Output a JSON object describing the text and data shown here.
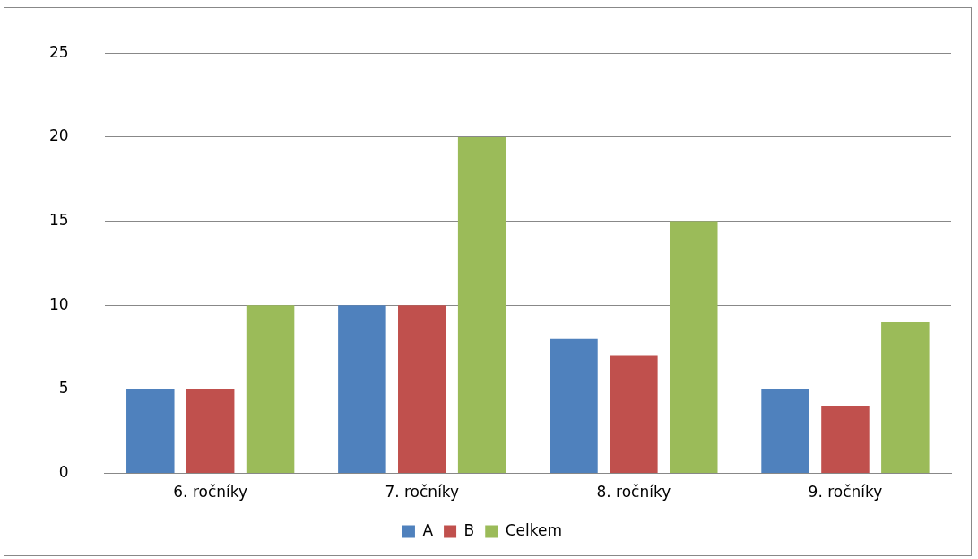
{
  "chart_data": {
    "type": "bar",
    "categories": [
      "6. ročníky",
      "7. ročníky",
      "8. ročníky",
      "9. ročníky"
    ],
    "series": [
      {
        "name": "A",
        "color": "#4f81bd",
        "values": [
          5,
          10,
          8,
          5
        ]
      },
      {
        "name": "B",
        "color": "#c0504d",
        "values": [
          5,
          10,
          7,
          4
        ]
      },
      {
        "name": "Celkem",
        "color": "#9bbb59",
        "values": [
          10,
          20,
          15,
          9
        ]
      }
    ],
    "ylim": [
      0,
      25
    ],
    "yticks": [
      0,
      5,
      10,
      15,
      20,
      25
    ],
    "grid": "y",
    "legend": "bottom"
  }
}
